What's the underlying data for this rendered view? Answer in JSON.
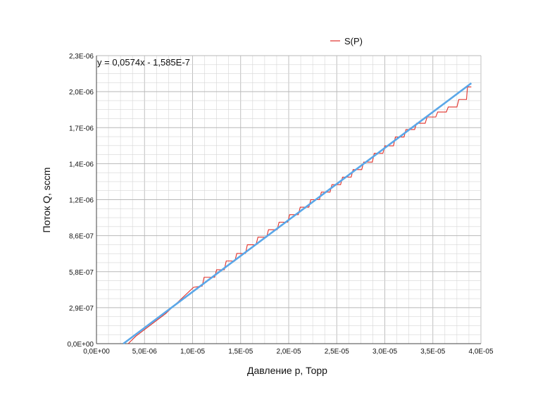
{
  "chart_data": {
    "type": "line",
    "xlabel": "Давление p, Торр",
    "ylabel": "Поток Q, sccm",
    "xlim": [
      0,
      4e-05
    ],
    "ylim": [
      0,
      2.3e-06
    ],
    "x_ticks": [
      0,
      5e-06,
      1e-05,
      1.5e-05,
      2e-05,
      2.5e-05,
      3e-05,
      3.5e-05,
      4e-05
    ],
    "x_tick_labels": [
      "0,0E+00",
      "5,0E-06",
      "1,0E-05",
      "1,5E-05",
      "2,0E-05",
      "2,5E-05",
      "3,0E-05",
      "3,5E-05",
      "4,0E-05"
    ],
    "y_ticks": [
      0,
      2.9e-07,
      5.8e-07,
      8.6e-07,
      1.2e-06,
      1.4e-06,
      1.7e-06,
      2e-06,
      2.3e-06
    ],
    "y_tick_labels": [
      "0,0E+00",
      "2,9E-07",
      "5,8E-07",
      "8,6E-07",
      "1,2E-06",
      "1,4E-06",
      "1,7E-06",
      "2,0E-06",
      "2,3E-06"
    ],
    "grid": true,
    "legend": {
      "position": "top",
      "entries": [
        {
          "label": "S(P)",
          "color": "#e0302a"
        }
      ]
    },
    "equation": "y = 0,0574x - 1,585E-7",
    "series": [
      {
        "name": "S(P)",
        "color": "#e0302a",
        "style": "step",
        "points": [
          [
            3.3e-06,
            0
          ],
          [
            4.1e-06,
            6e-08
          ],
          [
            7.2e-06,
            2.4e-07
          ],
          [
            1.01e-05,
            4.5e-07
          ],
          [
            1.1e-05,
            4.6e-07
          ],
          [
            1.12e-05,
            5.3e-07
          ],
          [
            1.23e-05,
            5.3e-07
          ],
          [
            1.25e-05,
            5.9e-07
          ],
          [
            1.33e-05,
            5.9e-07
          ],
          [
            1.35e-05,
            6.6e-07
          ],
          [
            1.44e-05,
            6.6e-07
          ],
          [
            1.46e-05,
            7.2e-07
          ],
          [
            1.55e-05,
            7.2e-07
          ],
          [
            1.57e-05,
            7.9e-07
          ],
          [
            1.66e-05,
            7.9e-07
          ],
          [
            1.68e-05,
            8.5e-07
          ],
          [
            1.77e-05,
            8.5e-07
          ],
          [
            1.79e-05,
            9.1e-07
          ],
          [
            1.88e-05,
            9.1e-07
          ],
          [
            1.9e-05,
            9.7e-07
          ],
          [
            1.99e-05,
            9.7e-07
          ],
          [
            2.01e-05,
            1.03e-06
          ],
          [
            2.1e-05,
            1.03e-06
          ],
          [
            2.12e-05,
            1.09e-06
          ],
          [
            2.21e-05,
            1.09e-06
          ],
          [
            2.23e-05,
            1.15e-06
          ],
          [
            2.32e-05,
            1.15e-06
          ],
          [
            2.34e-05,
            1.21e-06
          ],
          [
            2.43e-05,
            1.21e-06
          ],
          [
            2.45e-05,
            1.27e-06
          ],
          [
            2.54e-05,
            1.27e-06
          ],
          [
            2.56e-05,
            1.33e-06
          ],
          [
            2.65e-05,
            1.33e-06
          ],
          [
            2.67e-05,
            1.39e-06
          ],
          [
            2.76e-05,
            1.39e-06
          ],
          [
            2.78e-05,
            1.45e-06
          ],
          [
            2.87e-05,
            1.45e-06
          ],
          [
            2.89e-05,
            1.52e-06
          ],
          [
            2.98e-05,
            1.52e-06
          ],
          [
            3e-05,
            1.58e-06
          ],
          [
            3.09e-05,
            1.58e-06
          ],
          [
            3.11e-05,
            1.65e-06
          ],
          [
            3.2e-05,
            1.65e-06
          ],
          [
            3.22e-05,
            1.71e-06
          ],
          [
            3.31e-05,
            1.71e-06
          ],
          [
            3.33e-05,
            1.76e-06
          ],
          [
            3.42e-05,
            1.76e-06
          ],
          [
            3.44e-05,
            1.81e-06
          ],
          [
            3.53e-05,
            1.81e-06
          ],
          [
            3.55e-05,
            1.85e-06
          ],
          [
            3.64e-05,
            1.85e-06
          ],
          [
            3.66e-05,
            1.89e-06
          ],
          [
            3.75e-05,
            1.89e-06
          ],
          [
            3.77e-05,
            1.95e-06
          ],
          [
            3.85e-05,
            1.95e-06
          ],
          [
            3.86e-05,
            2.05e-06
          ],
          [
            3.9e-05,
            2.05e-06
          ]
        ]
      },
      {
        "color": "#5aa7e8",
        "style": "trendline",
        "points": [
          [
            2.8e-06,
            0
          ],
          [
            3.9e-05,
            2.08e-06
          ]
        ]
      }
    ]
  }
}
